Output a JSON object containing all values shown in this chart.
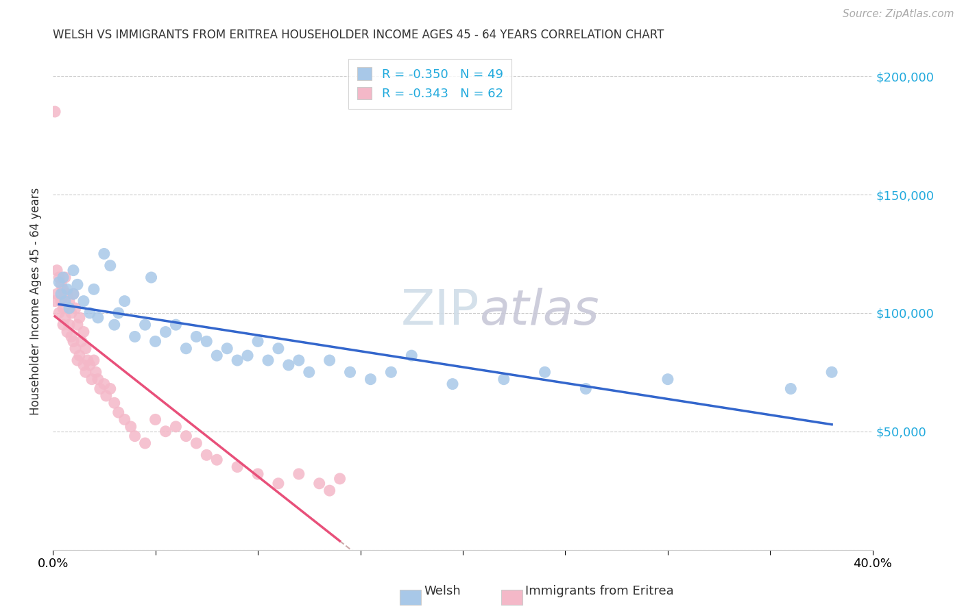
{
  "title": "WELSH VS IMMIGRANTS FROM ERITREA HOUSEHOLDER INCOME AGES 45 - 64 YEARS CORRELATION CHART",
  "source": "Source: ZipAtlas.com",
  "ylabel": "Householder Income Ages 45 - 64 years",
  "xlim": [
    0.0,
    0.4
  ],
  "ylim": [
    0,
    210000
  ],
  "yticks": [
    0,
    50000,
    100000,
    150000,
    200000
  ],
  "ytick_labels": [
    "",
    "$50,000",
    "$100,000",
    "$150,000",
    "$200,000"
  ],
  "xticks": [
    0.0,
    0.05,
    0.1,
    0.15,
    0.2,
    0.25,
    0.3,
    0.35,
    0.4
  ],
  "xtick_labels": [
    "0.0%",
    "",
    "",
    "",
    "",
    "",
    "",
    "",
    "40.0%"
  ],
  "grid_color": "#cccccc",
  "background_color": "#ffffff",
  "welsh_color": "#a8c8e8",
  "eritrea_color": "#f4b8c8",
  "welsh_line_color": "#3366cc",
  "eritrea_line_color": "#e8507a",
  "legend_R_welsh": "R = -0.350",
  "legend_N_welsh": "N = 49",
  "legend_R_eritrea": "R = -0.343",
  "legend_N_eritrea": "N = 62",
  "welsh_x": [
    0.003,
    0.004,
    0.005,
    0.006,
    0.007,
    0.008,
    0.01,
    0.01,
    0.012,
    0.015,
    0.018,
    0.02,
    0.022,
    0.025,
    0.028,
    0.03,
    0.032,
    0.035,
    0.04,
    0.045,
    0.048,
    0.05,
    0.055,
    0.06,
    0.065,
    0.07,
    0.075,
    0.08,
    0.085,
    0.09,
    0.095,
    0.1,
    0.105,
    0.11,
    0.115,
    0.12,
    0.125,
    0.135,
    0.145,
    0.155,
    0.165,
    0.175,
    0.195,
    0.22,
    0.24,
    0.26,
    0.3,
    0.36,
    0.38
  ],
  "welsh_y": [
    113000,
    108000,
    115000,
    105000,
    110000,
    102000,
    118000,
    108000,
    112000,
    105000,
    100000,
    110000,
    98000,
    125000,
    120000,
    95000,
    100000,
    105000,
    90000,
    95000,
    115000,
    88000,
    92000,
    95000,
    85000,
    90000,
    88000,
    82000,
    85000,
    80000,
    82000,
    88000,
    80000,
    85000,
    78000,
    80000,
    75000,
    80000,
    75000,
    72000,
    75000,
    82000,
    70000,
    72000,
    75000,
    68000,
    72000,
    68000,
    75000
  ],
  "eritrea_x": [
    0.001,
    0.001,
    0.002,
    0.002,
    0.003,
    0.003,
    0.004,
    0.004,
    0.005,
    0.005,
    0.005,
    0.006,
    0.006,
    0.007,
    0.007,
    0.008,
    0.008,
    0.009,
    0.009,
    0.01,
    0.01,
    0.011,
    0.011,
    0.012,
    0.012,
    0.013,
    0.013,
    0.014,
    0.015,
    0.015,
    0.016,
    0.016,
    0.017,
    0.018,
    0.019,
    0.02,
    0.021,
    0.022,
    0.023,
    0.025,
    0.026,
    0.028,
    0.03,
    0.032,
    0.035,
    0.038,
    0.04,
    0.045,
    0.05,
    0.055,
    0.06,
    0.065,
    0.07,
    0.075,
    0.08,
    0.09,
    0.1,
    0.11,
    0.12,
    0.13,
    0.135,
    0.14
  ],
  "eritrea_y": [
    185000,
    105000,
    118000,
    108000,
    115000,
    100000,
    112000,
    105000,
    110000,
    102000,
    95000,
    115000,
    98000,
    108000,
    92000,
    105000,
    95000,
    100000,
    90000,
    108000,
    88000,
    102000,
    85000,
    95000,
    80000,
    98000,
    82000,
    88000,
    92000,
    78000,
    85000,
    75000,
    80000,
    78000,
    72000,
    80000,
    75000,
    72000,
    68000,
    70000,
    65000,
    68000,
    62000,
    58000,
    55000,
    52000,
    48000,
    45000,
    55000,
    50000,
    52000,
    48000,
    45000,
    40000,
    38000,
    35000,
    32000,
    28000,
    32000,
    28000,
    25000,
    30000
  ]
}
